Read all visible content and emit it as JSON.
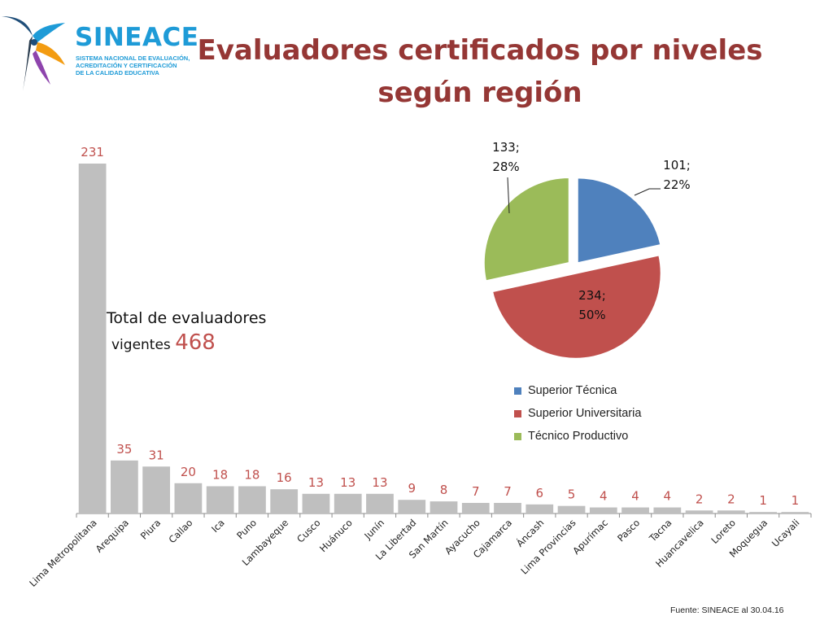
{
  "header": {
    "logo_name": "SINEACE",
    "logo_sub_lines": [
      "SISTEMA NACIONAL DE EVALUACIÓN,",
      "ACREDITACIÓN Y CERTIFICACIÓN",
      "DE LA CALIDAD EDUCATIVA"
    ],
    "title_line1": "Evaluadores certificados por niveles",
    "title_line2": "según región"
  },
  "total": {
    "label_line1": "Total de evaluadores",
    "label_line2": "vigentes",
    "value": "468"
  },
  "colors": {
    "bar": "#bfbfbf",
    "bar_label": "#c0504d",
    "title": "#953735",
    "brand": "#1e9bd7"
  },
  "chart_data": [
    {
      "type": "bar",
      "categories": [
        "Lima Metropolitana",
        "Arequipa",
        "Piura",
        "Callao",
        "Ica",
        "Puno",
        "Lambayeque",
        "Cusco",
        "Huánuco",
        "Junín",
        "La Libertad",
        "San Martín",
        "Ayacucho",
        "Cajamarca",
        "Áncash",
        "Lima Provincias",
        "Apurímac",
        "Pasco",
        "Tacna",
        "Huancavelica",
        "Loreto",
        "Moquegua",
        "Ucayali"
      ],
      "values": [
        231,
        35,
        31,
        20,
        18,
        18,
        16,
        13,
        13,
        13,
        9,
        8,
        7,
        7,
        6,
        5,
        4,
        4,
        4,
        2,
        2,
        1,
        1
      ],
      "data_labels": [
        "231",
        "35",
        "31",
        "20",
        "18",
        "18",
        "16",
        "13",
        "13",
        "13",
        "9",
        "8",
        "7",
        "7",
        "6",
        "5",
        "4",
        "4",
        "4",
        "2",
        "2",
        "1",
        "1"
      ],
      "ylim": [
        0,
        231
      ],
      "grid": false,
      "legend": false
    },
    {
      "type": "pie",
      "labels": [
        "Superior Técnica",
        "Superior Universitaria",
        "Técnico Productivo"
      ],
      "values": [
        101,
        234,
        133
      ],
      "percent": [
        22,
        50,
        28
      ],
      "data_labels": [
        {
          "line1": "101;",
          "line2": "22%"
        },
        {
          "line1": "234;",
          "line2": "50%"
        },
        {
          "line1": "133;",
          "line2": "28%"
        }
      ],
      "colors": [
        "#4f81bd",
        "#c0504d",
        "#9bbb59"
      ],
      "legend": "bottom"
    }
  ],
  "footer": {
    "source": "Fuente: SINEACE al  30.04.16"
  }
}
